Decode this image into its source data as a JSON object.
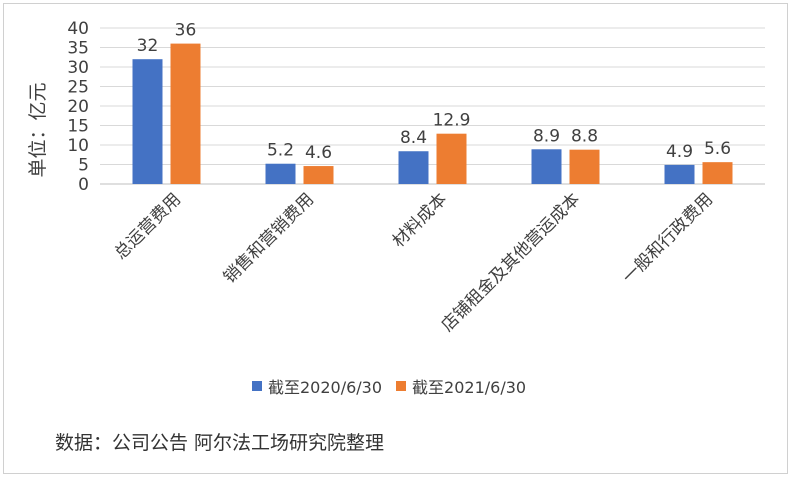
{
  "chart_data": {
    "type": "bar",
    "ylabel": "单位：亿元",
    "ylim": [
      0,
      40
    ],
    "yticks": [
      0,
      5,
      10,
      15,
      20,
      25,
      30,
      35,
      40
    ],
    "grid": true,
    "legend_position": "bottom",
    "categories": [
      "总运营费用",
      "销售和营销费用",
      "材料成本",
      "店铺租金及其他营运成本",
      "一般和行政费用"
    ],
    "series": [
      {
        "name": "截至2020/6/30",
        "color": "#4472C4",
        "values": [
          32,
          5.2,
          8.4,
          8.9,
          4.9
        ]
      },
      {
        "name": "截至2021/6/30",
        "color": "#ED7D31",
        "values": [
          36,
          4.6,
          12.9,
          8.8,
          5.6
        ]
      }
    ],
    "data_labels": [
      [
        "32",
        "5.2",
        "8.4",
        "8.9",
        "4.9"
      ],
      [
        "36",
        "4.6",
        "12.9",
        "8.8",
        "5.6"
      ]
    ]
  },
  "source_note": "数据：公司公告 阿尔法工场研究院整理"
}
